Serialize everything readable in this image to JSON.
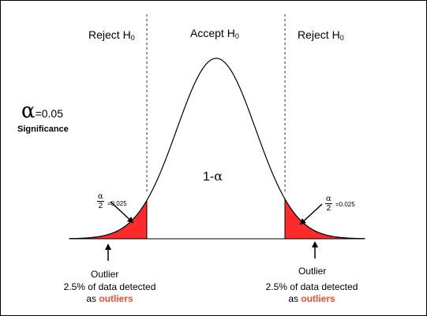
{
  "regions": {
    "left_reject": "Reject H",
    "left_reject_sub": "0",
    "accept": "Accept H",
    "accept_sub": "0",
    "right_reject": "Reject H",
    "right_reject_sub": "0"
  },
  "significance": {
    "symbol": "α",
    "value": "=0.05",
    "label": "Significance"
  },
  "center_label": {
    "text": "1-",
    "symbol": "α"
  },
  "tails": {
    "left": {
      "numerator": "α",
      "denominator": "2",
      "value": "=0.025"
    },
    "right": {
      "numerator": "α",
      "denominator": "2",
      "value": "=0.025"
    }
  },
  "annotations": {
    "left": {
      "title": "Outlier",
      "line1": "2.5% of data detected",
      "prefix": "as",
      "highlight": "outliers"
    },
    "right": {
      "title": "Outlier",
      "line1": "2.5% of data detected",
      "prefix": "as",
      "highlight": "outliers"
    }
  },
  "colors": {
    "tail_fill": "#ff2a2a",
    "highlight": "#ff4a2e",
    "curve": "#000000"
  },
  "distribution": {
    "tail_fraction_each_side": 0.025,
    "alpha": 0.05
  }
}
